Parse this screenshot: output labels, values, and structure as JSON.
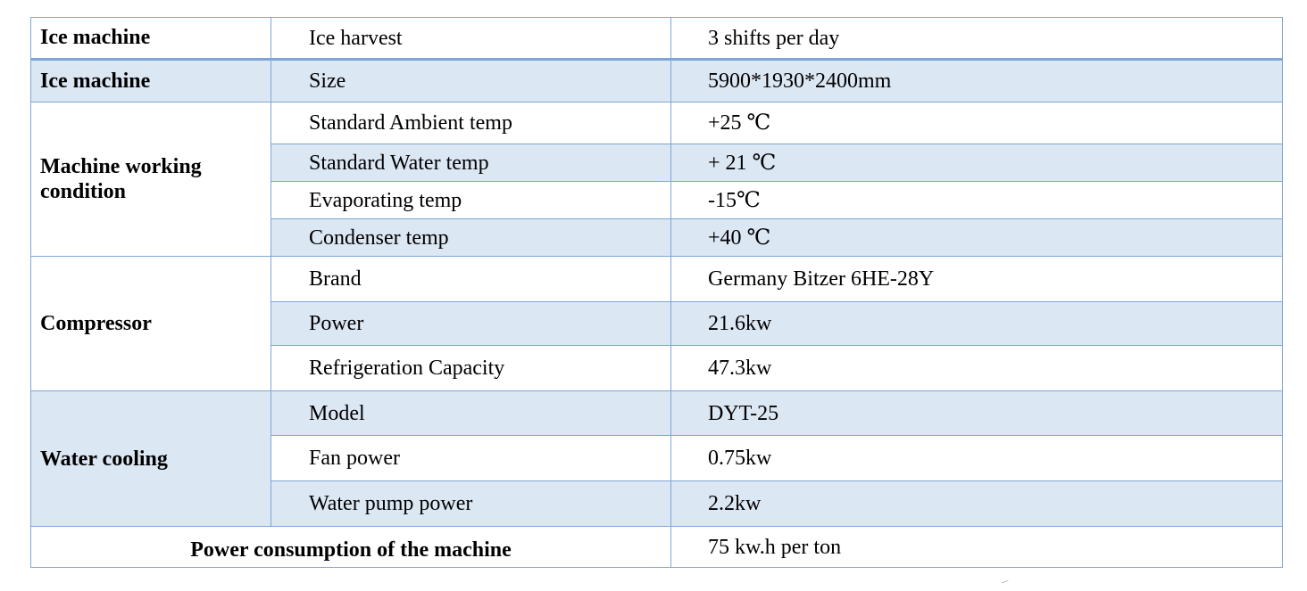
{
  "rows": [
    {
      "category": "Ice machine",
      "parameter": "Ice harvest",
      "value": "3 shifts per day"
    },
    {
      "category": "Ice machine",
      "parameter": "Size",
      "value": "5900*1930*2400mm"
    },
    {
      "category": "Machine working condition",
      "parameters": [
        {
          "parameter": "Standard Ambient temp",
          "value": "+25 ℃"
        },
        {
          "parameter": "Standard Water temp",
          "value": "+ 21 ℃"
        },
        {
          "parameter": "Evaporating temp",
          "value": "-15℃"
        },
        {
          "parameter": "Condenser temp",
          "value": "+40 ℃"
        }
      ]
    },
    {
      "category": "Compressor",
      "parameters": [
        {
          "parameter": "Brand",
          "value": "Germany Bitzer 6HE-28Y"
        },
        {
          "parameter": "Power",
          "value": "21.6kw"
        },
        {
          "parameter": "Refrigeration Capacity",
          "value": "47.3kw"
        }
      ]
    },
    {
      "category": "Water cooling",
      "parameters": [
        {
          "parameter": "Model",
          "value": "DYT-25"
        },
        {
          "parameter": "Fan power",
          "value": "0.75kw"
        },
        {
          "parameter": "Water pump power",
          "value": "2.2kw"
        }
      ]
    },
    {
      "category": "Power consumption of the machine",
      "value": "75 kw.h per ton"
    }
  ],
  "colors": {
    "border": "#7ea6d4",
    "shaded_row": "#dce7f4"
  }
}
